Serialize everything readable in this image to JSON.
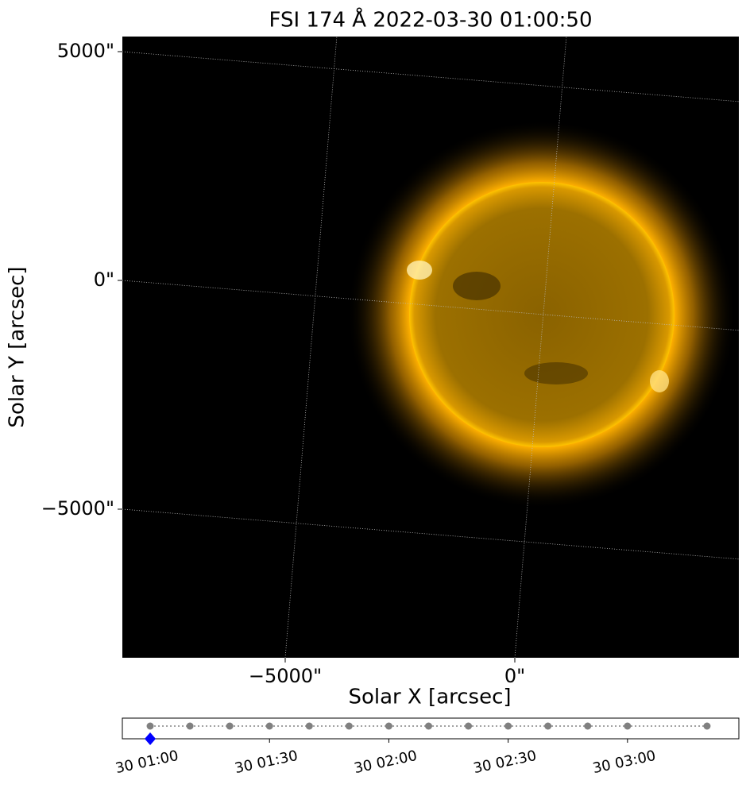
{
  "chart_data": [
    {
      "type": "image",
      "title": "FSI 174 Å 2022-03-30 01:00:50",
      "xlabel": "Solar X [arcsec]",
      "ylabel": "Solar Y [arcsec]",
      "xlim": [
        -8547,
        4879
      ],
      "ylim": [
        -8247,
        5330
      ],
      "xticks": [
        {
          "value": -5000,
          "label": "−5000\""
        },
        {
          "value": 0,
          "label": "0\""
        }
      ],
      "yticks": [
        {
          "value": 5000,
          "label": "5000\""
        },
        {
          "value": 0,
          "label": "0\""
        },
        {
          "value": -5000,
          "label": "−5000\""
        }
      ],
      "grid": true
    },
    {
      "type": "timeline",
      "x": [
        "30 01:00",
        "30 01:10",
        "30 01:20",
        "30 01:30",
        "30 01:40",
        "30 01:50",
        "30 02:00",
        "30 02:10",
        "30 02:20",
        "30 02:30",
        "30 02:40",
        "30 02:50",
        "30 03:00",
        "30 03:20"
      ],
      "xlim": [
        "30 00:53",
        "30 03:28"
      ],
      "xticks": [
        "30 01:00",
        "30 01:30",
        "30 02:00",
        "30 02:30",
        "30 03:00"
      ],
      "color": "#808080",
      "selected": 0,
      "selected_color": "#0000ff"
    }
  ]
}
